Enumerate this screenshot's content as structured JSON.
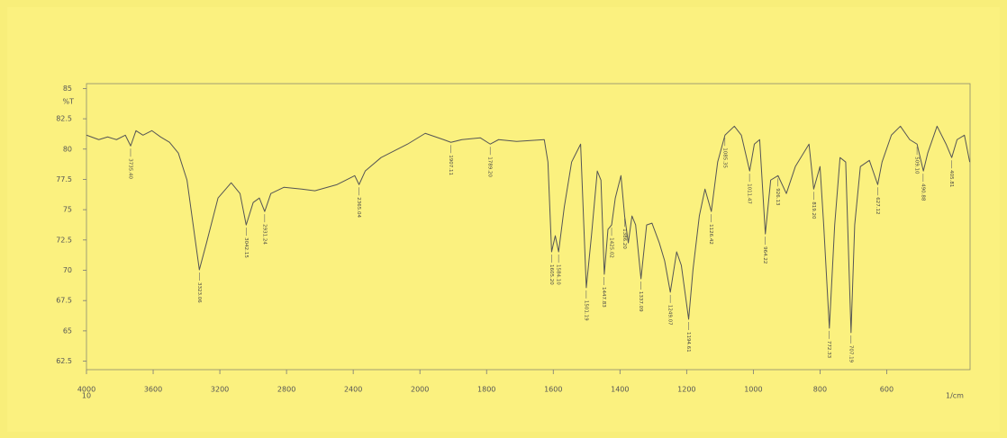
{
  "chart_data": {
    "type": "line",
    "ylabel": "%T",
    "xlabel": "1/cm",
    "x_note": "10",
    "color": "#555555",
    "xlim": [
      4000,
      350
    ],
    "xscale": {
      "break": 2000,
      "ratio": 2
    },
    "ylim": [
      61.8,
      85.4
    ],
    "xticks": [
      4000,
      3600,
      3200,
      2800,
      2400,
      2000,
      1800,
      1600,
      1400,
      1200,
      1000,
      800,
      600
    ],
    "yticks": [
      85,
      82.5,
      80,
      77.5,
      75,
      72.5,
      70,
      67.5,
      65,
      62.5
    ],
    "x": [
      4000,
      3926,
      3873,
      3820,
      3767,
      3735,
      3703,
      3661,
      3608,
      3555,
      3502,
      3449,
      3397,
      3360,
      3323,
      3280,
      3211,
      3132,
      3079,
      3042,
      3000,
      2963,
      2931,
      2894,
      2815,
      2709,
      2630,
      2497,
      2391,
      2365,
      2328,
      2233,
      2074,
      1984,
      1929,
      1907,
      1874,
      1819,
      1789,
      1764,
      1710,
      1627,
      1616,
      1605,
      1594,
      1584,
      1567,
      1545,
      1518,
      1501,
      1485,
      1468,
      1457,
      1447,
      1436,
      1425,
      1414,
      1397,
      1386,
      1375,
      1364,
      1353,
      1337,
      1320,
      1304,
      1282,
      1266,
      1249,
      1230,
      1216,
      1194,
      1181,
      1162,
      1145,
      1126,
      1107,
      1085,
      1057,
      1036,
      1011,
      997,
      981,
      964,
      948,
      926,
      901,
      874,
      833,
      819,
      800,
      789,
      772,
      756,
      740,
      723,
      707,
      696,
      679,
      652,
      627,
      614,
      586,
      559,
      531,
      509,
      490,
      477,
      449,
      422,
      405,
      389,
      367,
      351
    ],
    "values": [
      81.15,
      80.78,
      81.0,
      80.78,
      81.15,
      80.26,
      81.52,
      81.15,
      81.52,
      81.0,
      80.56,
      79.67,
      77.44,
      73.74,
      70.04,
      72.26,
      75.96,
      77.22,
      76.33,
      73.74,
      75.59,
      75.96,
      74.85,
      76.33,
      76.85,
      76.7,
      76.56,
      77.07,
      77.81,
      77.07,
      78.19,
      79.3,
      80.41,
      81.3,
      80.78,
      80.56,
      80.78,
      80.93,
      80.41,
      80.78,
      80.63,
      80.78,
      78.93,
      71.52,
      72.85,
      71.52,
      75.22,
      78.93,
      80.41,
      68.56,
      73.0,
      78.19,
      77.44,
      69.67,
      73.37,
      73.74,
      75.96,
      77.81,
      74.48,
      72.26,
      74.48,
      73.74,
      69.3,
      73.74,
      73.89,
      72.26,
      70.78,
      68.19,
      71.52,
      70.41,
      65.96,
      70.04,
      74.48,
      76.7,
      74.85,
      78.93,
      81.15,
      81.89,
      81.15,
      78.19,
      80.41,
      80.78,
      73.0,
      77.44,
      77.81,
      76.33,
      78.56,
      80.41,
      76.7,
      78.56,
      73.74,
      65.22,
      73.74,
      79.3,
      78.93,
      64.85,
      73.74,
      78.56,
      79.07,
      77.07,
      78.93,
      81.15,
      81.89,
      80.78,
      80.41,
      78.19,
      79.67,
      81.89,
      80.41,
      79.3,
      80.78,
      81.15,
      78.93
    ],
    "annotations": [
      {
        "x": 3735.4,
        "y": 80.26,
        "label": "3735.40"
      },
      {
        "x": 3323.06,
        "y": 70.04,
        "label": "3323.06"
      },
      {
        "x": 3042.15,
        "y": 73.74,
        "label": "3042.15"
      },
      {
        "x": 2931.24,
        "y": 74.85,
        "label": "2931.24"
      },
      {
        "x": 2365.04,
        "y": 77.07,
        "label": "2365.04"
      },
      {
        "x": 1907.11,
        "y": 80.56,
        "label": "1907.11"
      },
      {
        "x": 1789.2,
        "y": 80.41,
        "label": "1789.20"
      },
      {
        "x": 1605.2,
        "y": 71.52,
        "label": "1605.20"
      },
      {
        "x": 1584.1,
        "y": 71.52,
        "label": "1584.10"
      },
      {
        "x": 1501.19,
        "y": 68.56,
        "label": "1501.19"
      },
      {
        "x": 1447.83,
        "y": 69.67,
        "label": "1447.83"
      },
      {
        "x": 1425.02,
        "y": 73.74,
        "label": "1425.02"
      },
      {
        "x": 1386.2,
        "y": 74.48,
        "label": "1386.20"
      },
      {
        "x": 1337.09,
        "y": 69.3,
        "label": "1337.09"
      },
      {
        "x": 1249.07,
        "y": 68.19,
        "label": "1249.07"
      },
      {
        "x": 1194.61,
        "y": 65.96,
        "label": "1194.61"
      },
      {
        "x": 1126.42,
        "y": 74.85,
        "label": "1126.42"
      },
      {
        "x": 1085.35,
        "y": 81.15,
        "label": "1085.35"
      },
      {
        "x": 1011.47,
        "y": 78.19,
        "label": "1011.47"
      },
      {
        "x": 964.22,
        "y": 73.0,
        "label": "964.22"
      },
      {
        "x": 926.13,
        "y": 77.81,
        "label": "926.13"
      },
      {
        "x": 819.2,
        "y": 76.7,
        "label": "819.20"
      },
      {
        "x": 772.33,
        "y": 65.22,
        "label": "772.33"
      },
      {
        "x": 707.19,
        "y": 64.85,
        "label": "707.19"
      },
      {
        "x": 627.12,
        "y": 77.07,
        "label": "627.12"
      },
      {
        "x": 509.1,
        "y": 80.41,
        "label": "509.10"
      },
      {
        "x": 490.88,
        "y": 78.19,
        "label": "490.88"
      },
      {
        "x": 405.81,
        "y": 79.3,
        "label": "405.81"
      }
    ]
  }
}
